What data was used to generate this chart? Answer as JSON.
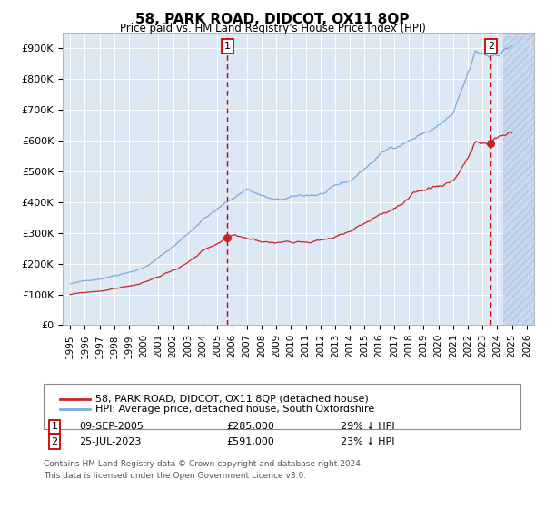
{
  "title": "58, PARK ROAD, DIDCOT, OX11 8QP",
  "subtitle": "Price paid vs. HM Land Registry's House Price Index (HPI)",
  "ylim": [
    0,
    950000
  ],
  "yticks": [
    0,
    100000,
    200000,
    300000,
    400000,
    500000,
    600000,
    700000,
    800000,
    900000
  ],
  "ytick_labels": [
    "£0",
    "£100K",
    "£200K",
    "£300K",
    "£400K",
    "£500K",
    "£600K",
    "£700K",
    "£800K",
    "£900K"
  ],
  "xlim_start": 1994.5,
  "xlim_end": 2026.5,
  "xtick_years": [
    1995,
    1996,
    1997,
    1998,
    1999,
    2000,
    2001,
    2002,
    2003,
    2004,
    2005,
    2006,
    2007,
    2008,
    2009,
    2010,
    2011,
    2012,
    2013,
    2014,
    2015,
    2016,
    2017,
    2018,
    2019,
    2020,
    2021,
    2022,
    2023,
    2024,
    2025,
    2026
  ],
  "transaction1_x": 2005.69,
  "transaction1_y": 285000,
  "transaction2_x": 2023.57,
  "transaction2_y": 591000,
  "hpi_color": "#7aabdc",
  "price_color": "#cc2222",
  "background_color": "#dde8f5",
  "legend_label1": "58, PARK ROAD, DIDCOT, OX11 8QP (detached house)",
  "legend_label2": "HPI: Average price, detached house, South Oxfordshire",
  "footnote1": "Contains HM Land Registry data © Crown copyright and database right 2024.",
  "footnote2": "This data is licensed under the Open Government Licence v3.0.",
  "hatch_start": 2024.42
}
